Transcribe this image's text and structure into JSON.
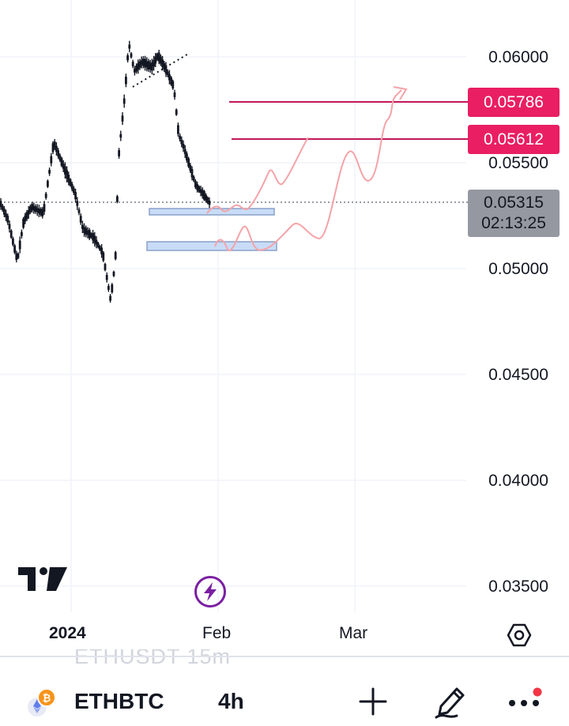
{
  "chart": {
    "symbol": "ETHBTC",
    "interval": "4h",
    "price_axis": [
      "0.06000",
      "0.05500",
      "0.05000",
      "0.04500",
      "0.04000",
      "0.03500"
    ],
    "time_axis": [
      "2024",
      "Feb",
      "Mar"
    ],
    "current_price": "0.05315",
    "countdown": "02:13:25",
    "level_tags": [
      "0.05786",
      "0.05612"
    ],
    "ghost_watermark": "ETHUSDT  15m",
    "colors": {
      "candle": "#131722",
      "level_line": "#c2185b",
      "level_tag": "#e91e63",
      "projection": "#f4a3a8",
      "zone_fill": "#c9dcf7",
      "zone_border": "#8aa0c8",
      "bolt": "#7b1fa2",
      "grid": "#f0f3fa"
    }
  },
  "toolbar": {
    "coin_icon": "eth-btc-pair-icon",
    "add_icon": "plus-icon",
    "draw_icon": "pencil-icon",
    "more_icon": "more-dots-icon"
  }
}
